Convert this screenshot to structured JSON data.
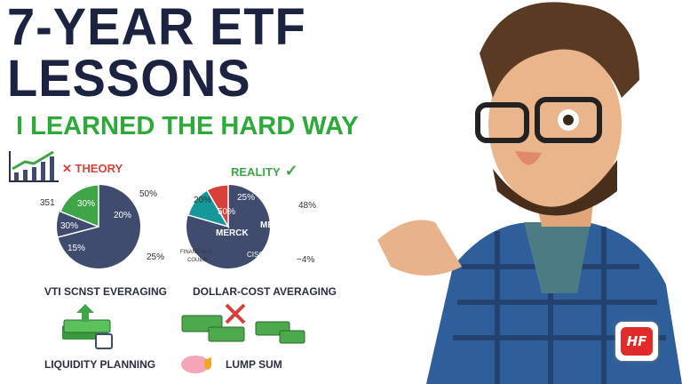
{
  "title_line1": "7-YEAR ETF",
  "title_line2": "LESSONS",
  "subtitle": "I LEARNED THE HARD WAY",
  "theory": {
    "label": "THEORY",
    "icon": "x-icon",
    "pie_labels": [
      "351",
      "30%",
      "30%",
      "15%",
      "20%",
      "50%",
      "25%"
    ],
    "caption": "VTI SCNST EVERAGING"
  },
  "reality": {
    "label": "REALITY",
    "icon": "checkmark-icon",
    "pie_labels": [
      "20%",
      "50%",
      "25%",
      "48%",
      "MERCK",
      "MERCK",
      "CISCO",
      "FINANCIALS",
      "COUBIB",
      "~4%"
    ],
    "caption": "DOLLAR-COST AVERAGING"
  },
  "liquidity": "LIQUIDITY PLANNING",
  "lump_sum": "LUMP SUM",
  "logo": "HF",
  "colors": {
    "navy": "#3f4c6e",
    "green": "#3fa648",
    "teal": "#14989a",
    "red": "#d8403a",
    "title": "#1c2340"
  }
}
